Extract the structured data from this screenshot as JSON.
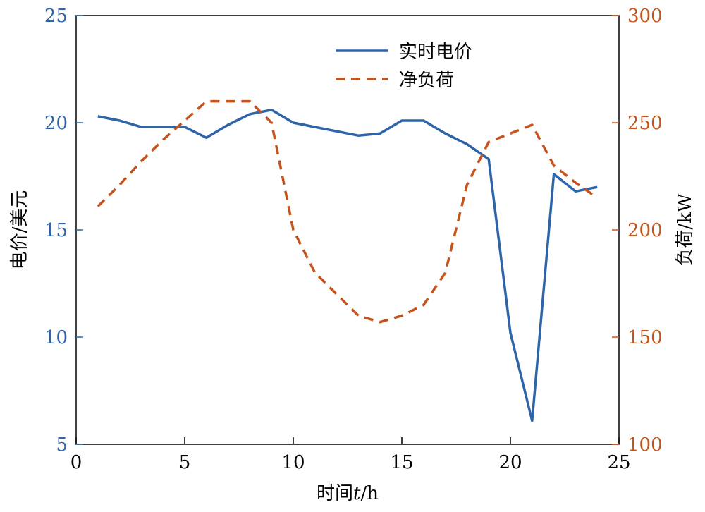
{
  "chart_data": {
    "type": "line",
    "x_axis": {
      "label_main": "时间",
      "label_var": "t",
      "label_unit": "/h",
      "lim": [
        0,
        25
      ],
      "ticks": [
        0,
        5,
        10,
        15,
        20,
        25
      ]
    },
    "y_left": {
      "label": "电价/美元",
      "lim": [
        5,
        25
      ],
      "ticks": [
        5,
        10,
        15,
        20,
        25
      ],
      "color": "#2e64a8"
    },
    "y_right": {
      "label": "负荷/kW",
      "lim": [
        100,
        300
      ],
      "ticks": [
        100,
        150,
        200,
        250,
        300
      ],
      "color": "#c5531b"
    },
    "legend_position": "top-center",
    "grid": false,
    "series": [
      {
        "name": "实时电价",
        "axis": "left",
        "style": "solid",
        "color": "#2e64a8",
        "x": [
          1,
          2,
          3,
          4,
          5,
          6,
          7,
          8,
          9,
          10,
          11,
          12,
          13,
          14,
          15,
          16,
          17,
          18,
          19,
          20,
          21,
          22,
          23,
          24
        ],
        "y": [
          20.3,
          20.1,
          19.8,
          19.8,
          19.8,
          19.3,
          19.9,
          20.4,
          20.6,
          20.0,
          19.8,
          19.6,
          19.4,
          19.5,
          20.1,
          20.1,
          19.5,
          19.0,
          18.3,
          10.2,
          6.1,
          17.6,
          16.8,
          17.0
        ]
      },
      {
        "name": "净负荷",
        "axis": "right",
        "style": "dashed",
        "color": "#c5531b",
        "x": [
          1,
          2,
          3,
          4,
          5,
          6,
          7,
          8,
          9,
          10,
          11,
          12,
          13,
          14,
          15,
          16,
          17,
          18,
          19,
          20,
          21,
          22,
          23,
          24
        ],
        "y": [
          211,
          221,
          232,
          242,
          251,
          260,
          260,
          260,
          250,
          200,
          180,
          170,
          160,
          157,
          160,
          165,
          180,
          221,
          241,
          245,
          249,
          230,
          222,
          215
        ]
      }
    ]
  }
}
